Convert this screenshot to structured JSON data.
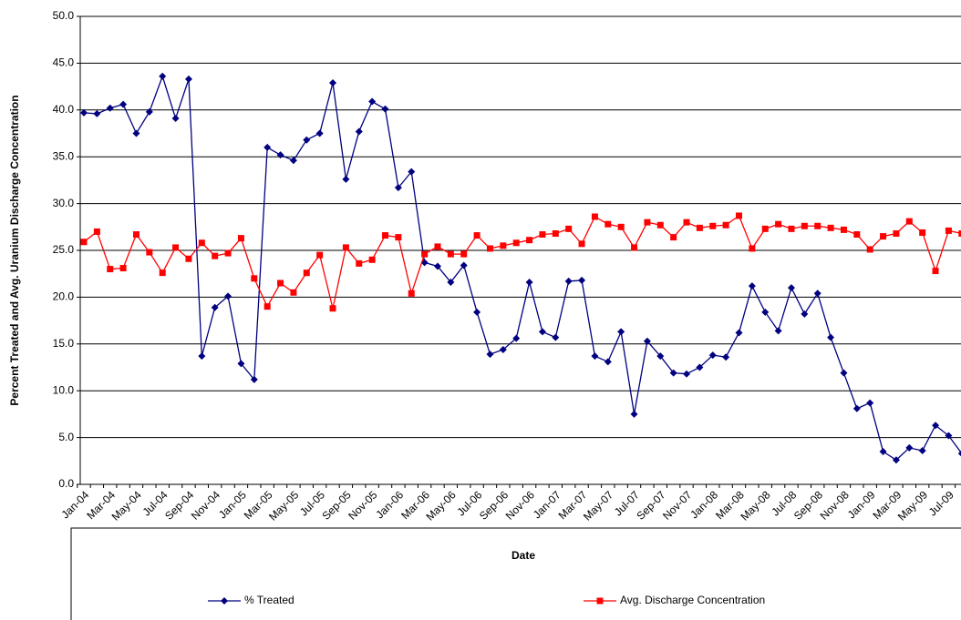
{
  "chart_data": {
    "type": "line",
    "x_label": "Date",
    "y_label": "Percent Treated and Avg. Uranium Discharge Concentration",
    "categories": [
      "Jan-04",
      null,
      "Mar-04",
      null,
      "May-04",
      null,
      "Jul-04",
      null,
      "Sep-04",
      null,
      "Nov-04",
      null,
      "Jan-05",
      null,
      "Mar-05",
      null,
      "May-05",
      null,
      "Jul-05",
      null,
      "Sep-05",
      null,
      "Nov-05",
      null,
      "Jan-06",
      null,
      "Mar-06",
      null,
      "May-06",
      null,
      "Jul-06",
      null,
      "Sep-06",
      null,
      "Nov-06",
      null,
      "Jan-07",
      null,
      "Mar-07",
      null,
      "May-07",
      null,
      "Jul-07",
      null,
      "Sep-07",
      null,
      "Nov-07",
      null,
      "Jan-08",
      null,
      "Mar-08",
      null,
      "May-08",
      null,
      "Jul-08",
      null,
      "Sep-08",
      null,
      "Nov-08",
      null,
      "Jan-09",
      null,
      "Mar-09",
      null,
      "May-09",
      null,
      "Jul-09",
      null
    ],
    "series": [
      {
        "name": "% Treated",
        "color": "#000080",
        "marker": "diamond",
        "values": [
          39.7,
          39.6,
          40.2,
          40.6,
          37.5,
          39.8,
          43.6,
          39.1,
          43.3,
          13.7,
          18.9,
          20.1,
          12.9,
          11.2,
          36.0,
          35.2,
          34.6,
          36.8,
          37.5,
          42.9,
          32.6,
          37.7,
          40.9,
          40.1,
          31.7,
          33.4,
          23.7,
          23.3,
          21.6,
          23.4,
          18.4,
          13.9,
          14.4,
          15.6,
          21.6,
          16.3,
          15.7,
          21.7,
          21.8,
          13.7,
          13.1,
          16.3,
          7.5,
          15.3,
          13.7,
          11.9,
          11.8,
          12.5,
          13.8,
          13.6,
          16.2,
          21.2,
          18.4,
          16.4,
          21.0,
          18.2,
          20.4,
          15.7,
          11.9,
          8.1,
          8.7,
          3.5,
          2.6,
          3.9,
          3.6,
          6.3,
          5.2,
          3.3
        ]
      },
      {
        "name": "Avg. Discharge Concentration",
        "color": "#ff0000",
        "marker": "square",
        "values": [
          25.9,
          27.0,
          23.0,
          23.1,
          26.7,
          24.8,
          22.6,
          25.3,
          24.1,
          25.8,
          24.4,
          24.7,
          26.3,
          22.0,
          19.0,
          21.5,
          20.5,
          22.6,
          24.5,
          18.8,
          25.3,
          23.6,
          24.0,
          26.6,
          26.4,
          20.4,
          24.6,
          25.4,
          24.6,
          24.6,
          26.6,
          25.2,
          25.5,
          25.8,
          26.1,
          26.7,
          26.8,
          27.3,
          25.7,
          28.6,
          27.8,
          27.5,
          25.3,
          28.0,
          27.7,
          26.4,
          28.0,
          27.4,
          27.6,
          27.7,
          28.7,
          25.2,
          27.3,
          27.8,
          27.3,
          27.6,
          27.6,
          27.4,
          27.2,
          26.7,
          25.1,
          26.5,
          26.8,
          28.1,
          26.9,
          22.8,
          27.1,
          26.8
        ]
      }
    ],
    "ylim": [
      0,
      50
    ],
    "yticks": [
      {
        "value": 0,
        "label": "0.0"
      },
      {
        "value": 5,
        "label": "5.0"
      },
      {
        "value": 10,
        "label": "10.0"
      },
      {
        "value": 15,
        "label": "15.0"
      },
      {
        "value": 20,
        "label": "20.0"
      },
      {
        "value": 25,
        "label": "25.0"
      },
      {
        "value": 30,
        "label": "30.0"
      },
      {
        "value": 35,
        "label": "35.0"
      },
      {
        "value": 40,
        "label": "40.0"
      },
      {
        "value": 45,
        "label": "45.0"
      },
      {
        "value": 50,
        "label": "50.0"
      }
    ],
    "grid": true,
    "legend": "bottom"
  }
}
